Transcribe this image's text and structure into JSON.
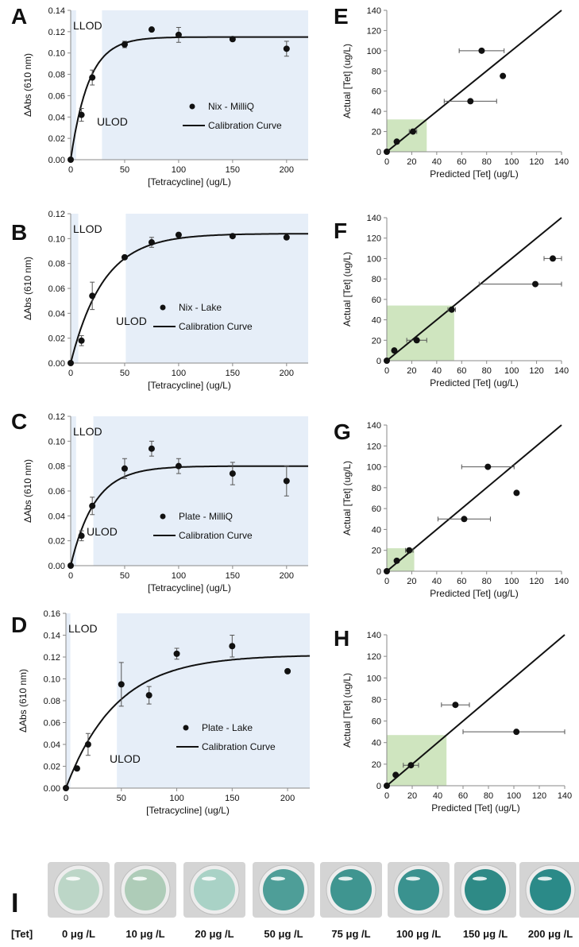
{
  "figure": {
    "chart_data": [
      {
        "type": "scatter",
        "panel": "A",
        "sample_label": "Nix - MilliQ",
        "curve_label": "Calibration Curve",
        "xlabel": "[Tetracycline] (ug/L)",
        "ylabel": "ΔAbs (610 nm)",
        "xlim": [
          0,
          220
        ],
        "ylim": [
          0,
          0.14
        ],
        "xticks": [
          0,
          50,
          100,
          150,
          200
        ],
        "yticks": [
          0,
          0.02,
          0.04,
          0.06,
          0.08,
          0.1,
          0.12,
          0.14
        ],
        "ytick_labels": [
          "0.00",
          "0.02",
          "0.04",
          "0.06",
          "0.08",
          "0.10",
          "0.12",
          "0.14"
        ],
        "llod": "LLOD",
        "ulod": "ULOD",
        "llod_x": 5,
        "ulod_x": 29,
        "x": [
          0,
          10,
          20,
          50,
          75,
          100,
          150,
          200
        ],
        "y": [
          0,
          0.042,
          0.077,
          0.108,
          0.122,
          0.117,
          0.113,
          0.104
        ],
        "err": [
          0,
          0.006,
          0.007,
          0.003,
          0,
          0.007,
          0,
          0.007
        ],
        "fit": {
          "a": 0.115,
          "k": 0.06
        }
      },
      {
        "type": "scatter",
        "panel": "B",
        "sample_label": "Nix - Lake",
        "curve_label": "Calibration Curve",
        "xlabel": "[Tetracycline] (ug/L)",
        "ylabel": "ΔAbs (610 nm)",
        "xlim": [
          0,
          220
        ],
        "ylim": [
          0,
          0.12
        ],
        "xticks": [
          0,
          50,
          100,
          150,
          200
        ],
        "yticks": [
          0,
          0.02,
          0.04,
          0.06,
          0.08,
          0.1,
          0.12
        ],
        "ytick_labels": [
          "0.00",
          "0.02",
          "0.04",
          "0.06",
          "0.08",
          "0.10",
          "0.12"
        ],
        "llod": "LLOD",
        "ulod": "ULOD",
        "llod_x": 7,
        "ulod_x": 51,
        "x": [
          0,
          10,
          20,
          50,
          75,
          100,
          150,
          200
        ],
        "y": [
          0,
          0.018,
          0.054,
          0.085,
          0.097,
          0.103,
          0.102,
          0.101
        ],
        "err": [
          0,
          0.004,
          0.011,
          0,
          0.004,
          0,
          0,
          0
        ],
        "fit": {
          "a": 0.104,
          "k": 0.033
        }
      },
      {
        "type": "scatter",
        "panel": "C",
        "sample_label": "Plate - MilliQ",
        "curve_label": "Calibration Curve",
        "xlabel": "[Tetracycline] (ug/L)",
        "ylabel": "ΔAbs (610 nm)",
        "xlim": [
          0,
          220
        ],
        "ylim": [
          0,
          0.12
        ],
        "xticks": [
          0,
          50,
          100,
          150,
          200
        ],
        "yticks": [
          0,
          0.02,
          0.04,
          0.06,
          0.08,
          0.1,
          0.12
        ],
        "ytick_labels": [
          "0.00",
          "0.02",
          "0.04",
          "0.06",
          "0.08",
          "0.10",
          "0.12"
        ],
        "llod": "LLOD",
        "ulod": "ULOD",
        "llod_x": 5,
        "ulod_x": 21,
        "x": [
          0,
          10,
          20,
          50,
          75,
          100,
          150,
          200
        ],
        "y": [
          0,
          0.024,
          0.048,
          0.078,
          0.094,
          0.08,
          0.074,
          0.068
        ],
        "err": [
          0,
          0.004,
          0.007,
          0.008,
          0.006,
          0.006,
          0.009,
          0.012
        ],
        "fit": {
          "a": 0.08,
          "k": 0.045
        }
      },
      {
        "type": "scatter",
        "panel": "D",
        "sample_label": "Plate - Lake",
        "curve_label": "Calibration Curve",
        "xlabel": "[Tetracycline] (ug/L)",
        "ylabel": "ΔAbs (610 nm)",
        "xlim": [
          0,
          220
        ],
        "ylim": [
          0,
          0.16
        ],
        "xticks": [
          0,
          50,
          100,
          150,
          200
        ],
        "yticks": [
          0,
          0.02,
          0.04,
          0.06,
          0.08,
          0.1,
          0.12,
          0.14,
          0.16
        ],
        "ytick_labels": [
          "0.00",
          "0.02",
          "0.04",
          "0.06",
          "0.08",
          "0.10",
          "0.12",
          "0.14",
          "0.16"
        ],
        "llod": "LLOD",
        "ulod": "ULOD",
        "llod_x": 4,
        "ulod_x": 46,
        "x": [
          0,
          10,
          20,
          50,
          75,
          100,
          150,
          200
        ],
        "y": [
          0,
          0.018,
          0.04,
          0.095,
          0.085,
          0.123,
          0.13,
          0.107
        ],
        "err": [
          0,
          0,
          0.01,
          0.02,
          0.008,
          0.005,
          0.01,
          0
        ],
        "fit": {
          "a": 0.122,
          "k": 0.022
        }
      },
      {
        "type": "scatter",
        "panel": "E",
        "xlabel": "Predicted [Tet] (ug/L)",
        "ylabel": "Actual [Tet] (ug/L)",
        "xlim": [
          0,
          140
        ],
        "ylim": [
          0,
          140
        ],
        "ticks": [
          0,
          20,
          40,
          60,
          80,
          100,
          120,
          140
        ],
        "shade": 32,
        "points": [
          {
            "x": 0,
            "y": 0,
            "xerr": 0
          },
          {
            "x": 8,
            "y": 10,
            "xerr": 0
          },
          {
            "x": 21,
            "y": 20,
            "xerr": 3
          },
          {
            "x": 67,
            "y": 50,
            "xerr": 21
          },
          {
            "x": 76,
            "y": 100,
            "xerr": 18
          },
          {
            "x": 93,
            "y": 75,
            "xerr": 0
          }
        ]
      },
      {
        "type": "scatter",
        "panel": "F",
        "xlabel": "Predicted [Tet] (ug/L)",
        "ylabel": "Actual [Tet] (ug/L)",
        "xlim": [
          0,
          140
        ],
        "ylim": [
          0,
          140
        ],
        "ticks": [
          0,
          20,
          40,
          60,
          80,
          100,
          120,
          140
        ],
        "shade": 54,
        "points": [
          {
            "x": 0,
            "y": 0,
            "xerr": 0
          },
          {
            "x": 6,
            "y": 10,
            "xerr": 0
          },
          {
            "x": 24,
            "y": 20,
            "xerr": 8
          },
          {
            "x": 52,
            "y": 50,
            "xerr": 3
          },
          {
            "x": 119,
            "y": 75,
            "xerr": 45
          },
          {
            "x": 133,
            "y": 100,
            "xerr": 7
          }
        ]
      },
      {
        "type": "scatter",
        "panel": "G",
        "xlabel": "Predicted [Tet] (ug/L)",
        "ylabel": "Actual [Tet] (ug/L)",
        "xlim": [
          0,
          140
        ],
        "ylim": [
          0,
          140
        ],
        "ticks": [
          0,
          20,
          40,
          60,
          80,
          100,
          120,
          140
        ],
        "shade": 22,
        "points": [
          {
            "x": 0,
            "y": 0,
            "xerr": 0
          },
          {
            "x": 8,
            "y": 10,
            "xerr": 0
          },
          {
            "x": 18,
            "y": 20,
            "xerr": 3
          },
          {
            "x": 62,
            "y": 50,
            "xerr": 21
          },
          {
            "x": 81,
            "y": 100,
            "xerr": 21
          },
          {
            "x": 104,
            "y": 75,
            "xerr": 0
          }
        ]
      },
      {
        "type": "scatter",
        "panel": "H",
        "xlabel": "Predicted [Tet] (ug/L)",
        "ylabel": "Actual [Tet] (ug/L)",
        "xlim": [
          0,
          140
        ],
        "ylim": [
          0,
          140
        ],
        "ticks": [
          0,
          20,
          40,
          60,
          80,
          100,
          120,
          140
        ],
        "shade": 47,
        "points": [
          {
            "x": 0,
            "y": 0,
            "xerr": 0
          },
          {
            "x": 7,
            "y": 10,
            "xerr": 0
          },
          {
            "x": 19,
            "y": 19,
            "xerr": 6
          },
          {
            "x": 54,
            "y": 75,
            "xerr": 11
          },
          {
            "x": 102,
            "y": 50,
            "xerr": 42
          }
        ]
      }
    ],
    "panel_i": {
      "label": "I",
      "row_label": "[Tet]",
      "wells": [
        {
          "label": "0 μg /L",
          "color": "#bcd6c7"
        },
        {
          "label": "10 μg /L",
          "color": "#aeccb8"
        },
        {
          "label": "20 μg /L",
          "color": "#a9d2c6"
        },
        {
          "label": "50 μg /L",
          "color": "#4e9e98"
        },
        {
          "label": "75 μg /L",
          "color": "#3f9590"
        },
        {
          "label": "100 μg /L",
          "color": "#3a928f"
        },
        {
          "label": "150 μg /L",
          "color": "#2e8a86"
        },
        {
          "label": "200 μg /L",
          "color": "#2b8a88"
        }
      ]
    },
    "colors": {
      "region": "#e6eef8",
      "shade": "#cfe5bf",
      "ink": "#111111",
      "axis": "#8a8a8a"
    }
  }
}
